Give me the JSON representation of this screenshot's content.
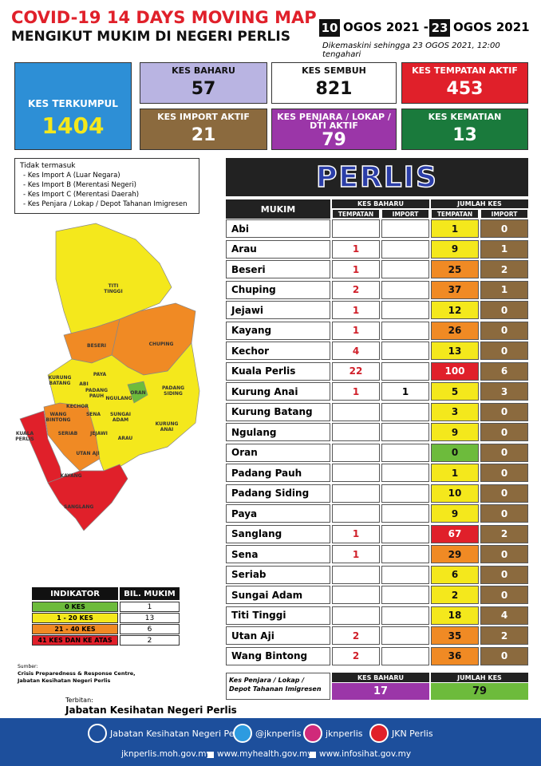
{
  "header": {
    "title": "COVID-19 14 DAYS MOVING MAP",
    "subtitle": "MENGIKUT MUKIM DI NEGERI PERLIS",
    "date_start_day": "10",
    "date_start_rest": "OGOS 2021 -",
    "date_end_day": "23",
    "date_end_rest": "OGOS 2021",
    "updated": "Dikemaskini sehingga 23 OGOS 2021, 12:00 tengahari"
  },
  "stats": [
    {
      "label": "KES TERKUMPUL",
      "value": 1404
    },
    {
      "label": "KES BAHARU",
      "value": 57
    },
    {
      "label": "KES SEMBUH",
      "value": 821
    },
    {
      "label": "KES TEMPATAN AKTIF",
      "value": 453
    },
    {
      "label": "KES IMPORT AKTIF",
      "value": 21
    },
    {
      "label": "KES PENJARA / LOKAP / DTI AKTIF",
      "value": 79
    },
    {
      "label": "KES KEMATIAN",
      "value": 13
    }
  ],
  "notes": {
    "heading": "Tidak termasuk",
    "items": [
      "- Kes Import A (Luar Negara)",
      "- Kes Import B (Merentasi Negeri)",
      "- Kes Import C (Merentasi Daerah)",
      "- Kes Penjara / Lokap / Depot Tahanan Imigresen"
    ]
  },
  "map": {
    "labels": [
      "TITI TINGGI",
      "BESERI",
      "CHUPING",
      "KURUNG BATANG",
      "ABI",
      "PAYA",
      "PADANG PAUH",
      "NGULANG",
      "ORAN",
      "PADANG SIDING",
      "KECHOR",
      "WANG BINTONG",
      "SENA",
      "SUNGAI ADAM",
      "SERIAB",
      "JEJAWI",
      "ARAU",
      "KURUNG ANAI",
      "KUALA PERLIS",
      "UTAN AJI",
      "KAYANG",
      "SANGLANG"
    ]
  },
  "indicator": {
    "headers": [
      "INDIKATOR",
      "BIL. MUKIM"
    ],
    "rows": [
      {
        "label": "0 KES",
        "count": 1,
        "color": "#6dbb3c"
      },
      {
        "label": "1 - 20 KES",
        "count": 13,
        "color": "#f4e81c"
      },
      {
        "label": "21 - 40 KES",
        "count": 6,
        "color": "#f08a24"
      },
      {
        "label": "41 KES DAN KE ATAS",
        "count": 2,
        "color": "#e0202a"
      }
    ]
  },
  "source": {
    "label": "Sumber:",
    "text": "Crisis Preparedness & Response Centre, Jabatan Kesihatan Negeri Perlis"
  },
  "publisher": {
    "label": "Terbitan:",
    "name": "Jabatan Kesihatan Negeri Perlis"
  },
  "table": {
    "title": "PERLIS",
    "headers": {
      "mukim": "MUKIM",
      "baharu": "KES BAHARU",
      "jumlah": "JUMLAH KES",
      "tempatan": "TEMPATAN",
      "import": "IMPORT"
    },
    "rows": [
      {
        "mukim": "Abi",
        "baharu_tempatan": null,
        "baharu_import": null,
        "jumlah_tempatan": 1,
        "jumlah_import": 0,
        "color": "#f4e81c"
      },
      {
        "mukim": "Arau",
        "baharu_tempatan": 1,
        "baharu_import": null,
        "jumlah_tempatan": 9,
        "jumlah_import": 1,
        "color": "#f4e81c"
      },
      {
        "mukim": "Beseri",
        "baharu_tempatan": 1,
        "baharu_import": null,
        "jumlah_tempatan": 25,
        "jumlah_import": 2,
        "color": "#f08a24"
      },
      {
        "mukim": "Chuping",
        "baharu_tempatan": 2,
        "baharu_import": null,
        "jumlah_tempatan": 37,
        "jumlah_import": 1,
        "color": "#f08a24"
      },
      {
        "mukim": "Jejawi",
        "baharu_tempatan": 1,
        "baharu_import": null,
        "jumlah_tempatan": 12,
        "jumlah_import": 0,
        "color": "#f4e81c"
      },
      {
        "mukim": "Kayang",
        "baharu_tempatan": 1,
        "baharu_import": null,
        "jumlah_tempatan": 26,
        "jumlah_import": 0,
        "color": "#f08a24"
      },
      {
        "mukim": "Kechor",
        "baharu_tempatan": 4,
        "baharu_import": null,
        "jumlah_tempatan": 13,
        "jumlah_import": 0,
        "color": "#f4e81c"
      },
      {
        "mukim": "Kuala Perlis",
        "baharu_tempatan": 22,
        "baharu_import": null,
        "jumlah_tempatan": 100,
        "jumlah_import": 6,
        "color": "#e0202a"
      },
      {
        "mukim": "Kurung Anai",
        "baharu_tempatan": 1,
        "baharu_import": 1,
        "jumlah_tempatan": 5,
        "jumlah_import": 3,
        "color": "#f4e81c"
      },
      {
        "mukim": "Kurung Batang",
        "baharu_tempatan": null,
        "baharu_import": null,
        "jumlah_tempatan": 3,
        "jumlah_import": 0,
        "color": "#f4e81c"
      },
      {
        "mukim": "Ngulang",
        "baharu_tempatan": null,
        "baharu_import": null,
        "jumlah_tempatan": 9,
        "jumlah_import": 0,
        "color": "#f4e81c"
      },
      {
        "mukim": "Oran",
        "baharu_tempatan": null,
        "baharu_import": null,
        "jumlah_tempatan": 0,
        "jumlah_import": 0,
        "color": "#6dbb3c"
      },
      {
        "mukim": "Padang Pauh",
        "baharu_tempatan": null,
        "baharu_import": null,
        "jumlah_tempatan": 1,
        "jumlah_import": 0,
        "color": "#f4e81c"
      },
      {
        "mukim": "Padang Siding",
        "baharu_tempatan": null,
        "baharu_import": null,
        "jumlah_tempatan": 10,
        "jumlah_import": 0,
        "color": "#f4e81c"
      },
      {
        "mukim": "Paya",
        "baharu_tempatan": null,
        "baharu_import": null,
        "jumlah_tempatan": 9,
        "jumlah_import": 0,
        "color": "#f4e81c"
      },
      {
        "mukim": "Sanglang",
        "baharu_tempatan": 1,
        "baharu_import": null,
        "jumlah_tempatan": 67,
        "jumlah_import": 2,
        "color": "#e0202a"
      },
      {
        "mukim": "Sena",
        "baharu_tempatan": 1,
        "baharu_import": null,
        "jumlah_tempatan": 29,
        "jumlah_import": 0,
        "color": "#f08a24"
      },
      {
        "mukim": "Seriab",
        "baharu_tempatan": null,
        "baharu_import": null,
        "jumlah_tempatan": 6,
        "jumlah_import": 0,
        "color": "#f4e81c"
      },
      {
        "mukim": "Sungai Adam",
        "baharu_tempatan": null,
        "baharu_import": null,
        "jumlah_tempatan": 2,
        "jumlah_import": 0,
        "color": "#f4e81c"
      },
      {
        "mukim": "Titi Tinggi",
        "baharu_tempatan": null,
        "baharu_import": null,
        "jumlah_tempatan": 18,
        "jumlah_import": 4,
        "color": "#f4e81c"
      },
      {
        "mukim": "Utan Aji",
        "baharu_tempatan": 2,
        "baharu_import": null,
        "jumlah_tempatan": 35,
        "jumlah_import": 2,
        "color": "#f08a24"
      },
      {
        "mukim": "Wang Bintong",
        "baharu_tempatan": 2,
        "baharu_import": null,
        "jumlah_tempatan": 36,
        "jumlah_import": 0,
        "color": "#f08a24"
      }
    ]
  },
  "penjara": {
    "label": "Kes Penjara / Lokap / Depot Tahanan Imigresen",
    "baharu_label": "KES BAHARU",
    "baharu": 17,
    "jumlah_label": "JUMLAH KES",
    "jumlah": 79
  },
  "footer": {
    "social": [
      "Jabatan Kesihatan Negeri Perlis",
      "@jknperlis",
      "jknperlis",
      "JKN Perlis"
    ],
    "links": [
      "jknperlis.moh.gov.my",
      "www.myhealth.gov.my",
      "www.infosihat.gov.my"
    ]
  }
}
